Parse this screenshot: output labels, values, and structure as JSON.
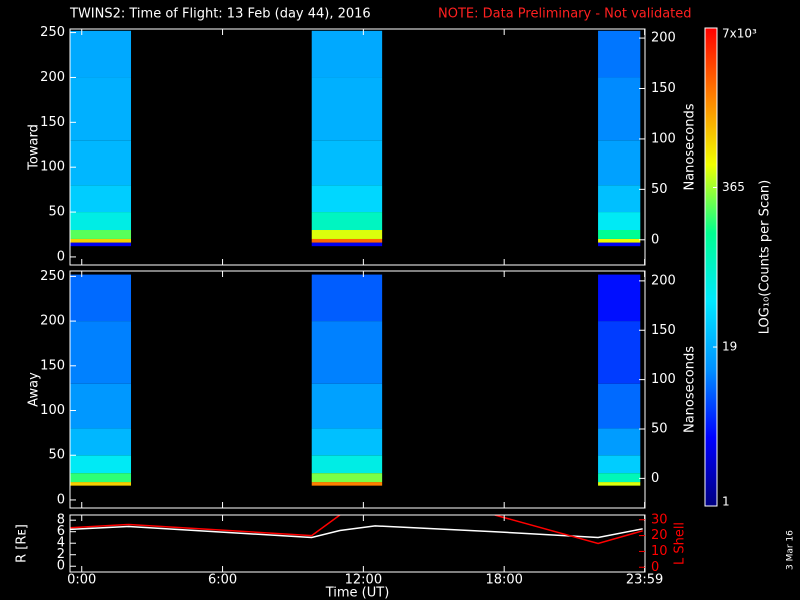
{
  "title": "TWINS2: Time of Flight: 13 Feb (day  44), 2016",
  "note": "NOTE: Data Preliminary - Not validated",
  "stamp": "3 Mar 16",
  "chart_data": [
    {
      "type": "spectrogram",
      "ylabel": "Toward",
      "y2label": "Nanoseconds",
      "xlim": [
        -0.5,
        24
      ],
      "ylim": [
        -9,
        254
      ],
      "yticks": [
        0,
        50,
        100,
        150,
        200,
        250
      ],
      "y2lim": [
        -25,
        209
      ],
      "y2ticks": [
        0,
        50,
        100,
        150,
        200
      ],
      "intervals": [
        [
          -0.5,
          2.1
        ],
        [
          9.8,
          12.8
        ],
        [
          22.0,
          23.8
        ]
      ],
      "channels": [
        12,
        16,
        20,
        30,
        50,
        80,
        130,
        200,
        252
      ],
      "values": [
        [
          3,
          900,
          250,
          60,
          30,
          22,
          20,
          18
        ],
        [
          3,
          2500,
          500,
          90,
          35,
          24,
          20,
          18
        ],
        [
          3,
          600,
          150,
          50,
          25,
          16,
          12,
          10
        ]
      ]
    },
    {
      "type": "spectrogram",
      "ylabel": "Away",
      "y2label": "Nanoseconds",
      "xlim": [
        -0.5,
        24
      ],
      "ylim": [
        -9,
        256
      ],
      "yticks": [
        0,
        50,
        100,
        150,
        200,
        250
      ],
      "y2lim": [
        -30,
        210
      ],
      "y2ticks": [
        0,
        50,
        100,
        150,
        200
      ],
      "intervals": [
        [
          -0.5,
          2.1
        ],
        [
          9.8,
          12.8
        ],
        [
          22.0,
          23.8
        ]
      ],
      "channels": [
        16,
        20,
        30,
        50,
        80,
        130,
        200,
        252
      ],
      "values": [
        [
          900,
          200,
          50,
          22,
          14,
          11,
          9
        ],
        [
          2000,
          300,
          60,
          25,
          16,
          11,
          8
        ],
        [
          500,
          100,
          30,
          15,
          9,
          6,
          4
        ]
      ]
    },
    {
      "type": "line",
      "xlabel": "Time (UT)",
      "xlim": [
        -0.5,
        24
      ],
      "xticks": [
        {
          "value": 0,
          "label": "0:00"
        },
        {
          "value": 6,
          "label": "6:00"
        },
        {
          "value": 12,
          "label": "12:00"
        },
        {
          "value": 18,
          "label": "18:00"
        },
        {
          "value": 23.983,
          "label": "23:59"
        }
      ],
      "ylim": [
        -1,
        8.9
      ],
      "yticks": [
        0,
        2,
        4,
        6,
        8
      ],
      "y2lim": [
        -3,
        33
      ],
      "y2ticks": [
        0,
        10,
        20,
        30
      ],
      "x": [
        -0.5,
        2,
        9.8,
        11,
        12.5,
        17.6,
        22,
        23.9
      ],
      "series": [
        {
          "name": "R [Rᴇ]",
          "color": "#ffffff",
          "values": [
            6.4,
            6.9,
            5.0,
            6.2,
            7.0,
            6.0,
            5.0,
            6.5
          ]
        },
        {
          "name": "L Shell",
          "color": "#ff0000",
          "axis": "y2",
          "values": [
            25,
            27,
            20,
            33,
            null,
            33,
            15,
            23
          ]
        }
      ]
    },
    {
      "type": "colorbar",
      "label": "LOG₁₀(Counts per Scan)",
      "log": true,
      "ylim": [
        1,
        7000
      ],
      "yticks": [
        {
          "value": 7000,
          "label": "7x10³"
        },
        365,
        19,
        1
      ],
      "colormap": [
        "#000080",
        "#0000ff",
        "#0090ff",
        "#00e8ff",
        "#00ff90",
        "#f0ff00",
        "#ff8000",
        "#ff0000"
      ]
    }
  ]
}
